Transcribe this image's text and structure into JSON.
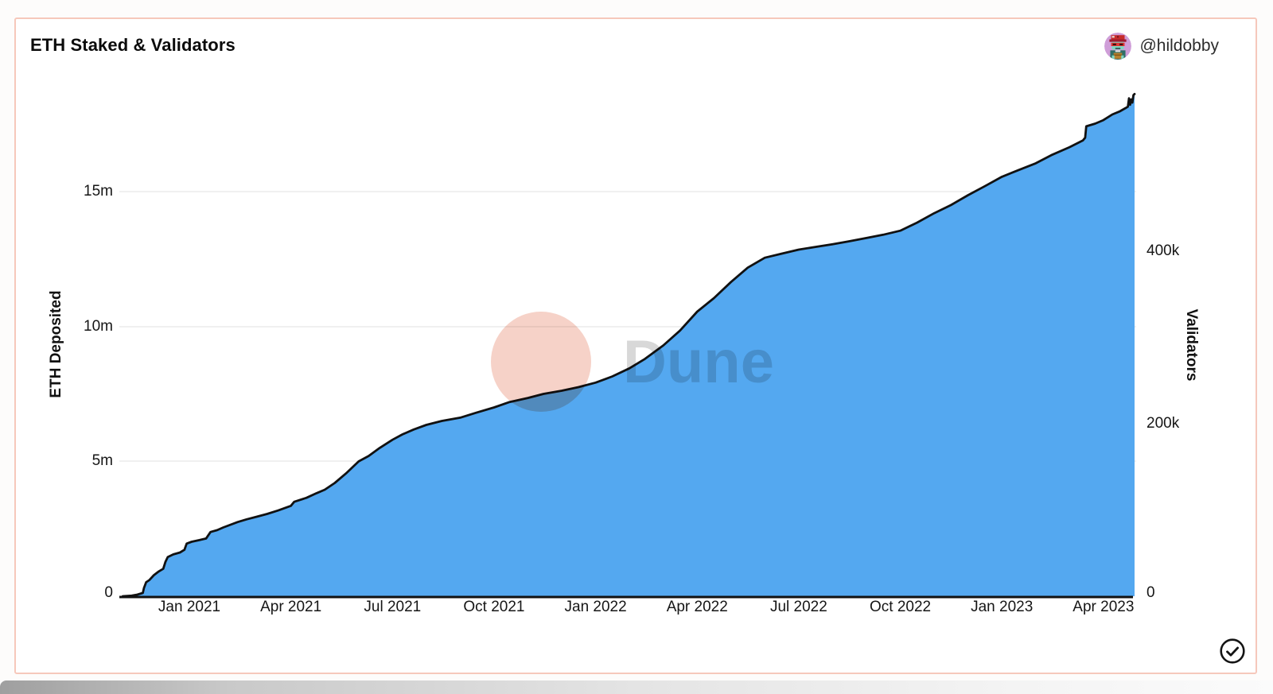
{
  "chart_data": {
    "type": "area",
    "title": "ETH Staked & Validators",
    "author": "@hildobby",
    "watermark": "Dune",
    "grid": "horizontal-only",
    "x_axis": {
      "range": [
        "2020-11-02",
        "2023-04-29"
      ],
      "ticks": [
        "Jan 2021",
        "Apr 2021",
        "Jul 2021",
        "Oct 2021",
        "Jan 2022",
        "Apr 2022",
        "Jul 2022",
        "Oct 2022",
        "Jan 2023",
        "Apr 2023"
      ]
    },
    "y_left": {
      "label": "ETH Deposited",
      "unit": "millions of ETH",
      "range": [
        0,
        18.9
      ],
      "ticks": [
        "15m",
        "10m",
        "5m",
        "0"
      ]
    },
    "y_right": {
      "label": "Validators",
      "unit": "thousands of validators",
      "range": [
        0,
        590
      ],
      "ticks": [
        "400k",
        "200k",
        "0"
      ]
    },
    "series": [
      {
        "name": "ETH Deposited",
        "line_color": "#111111",
        "fill_color": "#54a8f0",
        "points_unit_m_eth": true,
        "points": [
          [
            "2020-11-02",
            0
          ],
          [
            "2020-11-10",
            0.02
          ],
          [
            "2020-11-15",
            0.06
          ],
          [
            "2020-11-20",
            0.12
          ],
          [
            "2020-11-21",
            0.3
          ],
          [
            "2020-11-23",
            0.52
          ],
          [
            "2020-11-26",
            0.6
          ],
          [
            "2020-11-30",
            0.78
          ],
          [
            "2020-12-04",
            0.92
          ],
          [
            "2020-12-08",
            1.02
          ],
          [
            "2020-12-10",
            1.28
          ],
          [
            "2020-12-12",
            1.45
          ],
          [
            "2020-12-17",
            1.55
          ],
          [
            "2020-12-23",
            1.62
          ],
          [
            "2020-12-27",
            1.72
          ],
          [
            "2020-12-29",
            1.95
          ],
          [
            "2021-01-03",
            2.02
          ],
          [
            "2021-01-10",
            2.08
          ],
          [
            "2021-01-16",
            2.14
          ],
          [
            "2021-01-20",
            2.38
          ],
          [
            "2021-01-26",
            2.45
          ],
          [
            "2021-02-01",
            2.55
          ],
          [
            "2021-02-14",
            2.75
          ],
          [
            "2021-02-22",
            2.85
          ],
          [
            "2021-03-01",
            2.95
          ],
          [
            "2021-03-10",
            3.05
          ],
          [
            "2021-03-20",
            3.18
          ],
          [
            "2021-04-01",
            3.35
          ],
          [
            "2021-04-04",
            3.5
          ],
          [
            "2021-04-15",
            3.65
          ],
          [
            "2021-04-24",
            3.82
          ],
          [
            "2021-05-01",
            3.95
          ],
          [
            "2021-05-10",
            4.2
          ],
          [
            "2021-05-20",
            4.55
          ],
          [
            "2021-06-01",
            5.0
          ],
          [
            "2021-06-10",
            5.2
          ],
          [
            "2021-06-20",
            5.5
          ],
          [
            "2021-07-01",
            5.8
          ],
          [
            "2021-07-10",
            6.0
          ],
          [
            "2021-07-20",
            6.18
          ],
          [
            "2021-08-01",
            6.35
          ],
          [
            "2021-08-15",
            6.5
          ],
          [
            "2021-09-01",
            6.62
          ],
          [
            "2021-09-15",
            6.8
          ],
          [
            "2021-10-01",
            7.0
          ],
          [
            "2021-10-15",
            7.2
          ],
          [
            "2021-11-01",
            7.35
          ],
          [
            "2021-11-15",
            7.5
          ],
          [
            "2021-12-01",
            7.62
          ],
          [
            "2021-12-16",
            7.75
          ],
          [
            "2022-01-01",
            7.92
          ],
          [
            "2022-01-16",
            8.15
          ],
          [
            "2022-02-01",
            8.45
          ],
          [
            "2022-02-15",
            8.8
          ],
          [
            "2022-03-01",
            9.3
          ],
          [
            "2022-03-16",
            9.85
          ],
          [
            "2022-04-01",
            10.55
          ],
          [
            "2022-04-16",
            11.05
          ],
          [
            "2022-05-01",
            11.65
          ],
          [
            "2022-05-16",
            12.18
          ],
          [
            "2022-06-01",
            12.55
          ],
          [
            "2022-06-16",
            12.7
          ],
          [
            "2022-07-01",
            12.85
          ],
          [
            "2022-07-16",
            12.95
          ],
          [
            "2022-08-01",
            13.05
          ],
          [
            "2022-08-16",
            13.16
          ],
          [
            "2022-09-01",
            13.28
          ],
          [
            "2022-09-16",
            13.4
          ],
          [
            "2022-10-01",
            13.55
          ],
          [
            "2022-10-16",
            13.85
          ],
          [
            "2022-11-01",
            14.2
          ],
          [
            "2022-11-16",
            14.5
          ],
          [
            "2022-12-01",
            14.87
          ],
          [
            "2022-12-16",
            15.2
          ],
          [
            "2023-01-01",
            15.55
          ],
          [
            "2023-01-16",
            15.8
          ],
          [
            "2023-02-01",
            16.05
          ],
          [
            "2023-02-15",
            16.35
          ],
          [
            "2023-03-01",
            16.65
          ],
          [
            "2023-03-13",
            16.9
          ],
          [
            "2023-03-15",
            17.0
          ],
          [
            "2023-03-16",
            17.42
          ],
          [
            "2023-03-24",
            17.52
          ],
          [
            "2023-04-01",
            17.65
          ],
          [
            "2023-04-09",
            17.86
          ],
          [
            "2023-04-16",
            17.98
          ],
          [
            "2023-04-21",
            18.1
          ],
          [
            "2023-04-23",
            18.15
          ],
          [
            "2023-04-24",
            18.46
          ],
          [
            "2023-04-25",
            18.22
          ],
          [
            "2023-04-26",
            18.42
          ],
          [
            "2023-04-27",
            18.3
          ],
          [
            "2023-04-28",
            18.58
          ],
          [
            "2023-04-29",
            18.62
          ]
        ]
      }
    ]
  },
  "colors": {
    "card_border": "#f6c8bb",
    "area_fill": "#54a8f0",
    "line": "#111111",
    "gridline": "#ececec",
    "watermark_circle": "#f6d2c8",
    "watermark_text": "#d8d8d8",
    "avatar_bg": "#cf9ed8"
  },
  "icons": {
    "verified_check": "check-circle"
  }
}
